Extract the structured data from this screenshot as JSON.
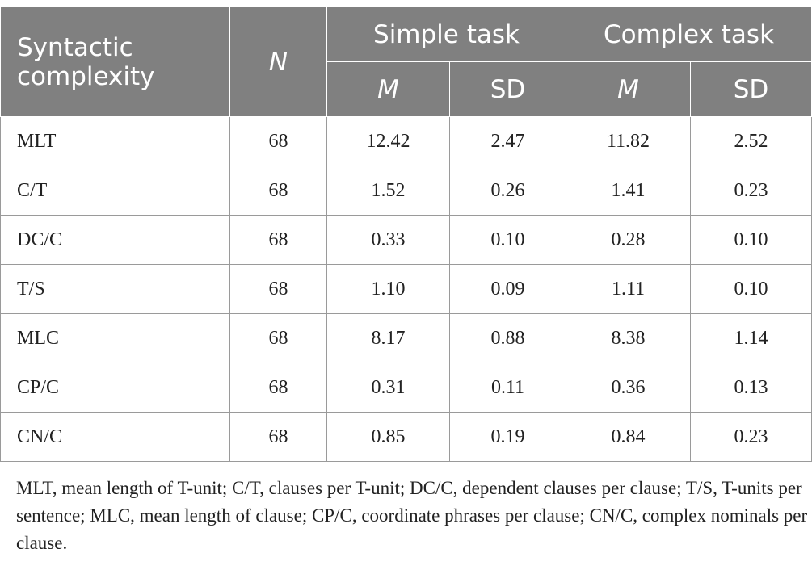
{
  "table": {
    "headers": {
      "syntactic_complexity": "Syntactic complexity",
      "n": "N",
      "simple_task": "Simple task",
      "complex_task": "Complex task",
      "m": "M",
      "sd": "SD"
    },
    "rows": [
      {
        "label": "MLT",
        "n": "68",
        "simple_m": "12.42",
        "simple_sd": "2.47",
        "complex_m": "11.82",
        "complex_sd": "2.52"
      },
      {
        "label": "C/T",
        "n": "68",
        "simple_m": "1.52",
        "simple_sd": "0.26",
        "complex_m": "1.41",
        "complex_sd": "0.23"
      },
      {
        "label": "DC/C",
        "n": "68",
        "simple_m": "0.33",
        "simple_sd": "0.10",
        "complex_m": "0.28",
        "complex_sd": "0.10"
      },
      {
        "label": "T/S",
        "n": "68",
        "simple_m": "1.10",
        "simple_sd": "0.09",
        "complex_m": "1.11",
        "complex_sd": "0.10"
      },
      {
        "label": "MLC",
        "n": "68",
        "simple_m": "8.17",
        "simple_sd": "0.88",
        "complex_m": "8.38",
        "complex_sd": "1.14"
      },
      {
        "label": "CP/C",
        "n": "68",
        "simple_m": "0.31",
        "simple_sd": "0.11",
        "complex_m": "0.36",
        "complex_sd": "0.13"
      },
      {
        "label": "CN/C",
        "n": "68",
        "simple_m": "0.85",
        "simple_sd": "0.19",
        "complex_m": "0.84",
        "complex_sd": "0.23"
      }
    ],
    "footnote": "MLT, mean length of T-unit; C/T, clauses per T-unit; DC/C, dependent clauses per clause; T/S, T-units per sentence; MLC, mean length of clause; CP/C, coordinate phrases per clause; CN/C, complex nominals per clause."
  }
}
